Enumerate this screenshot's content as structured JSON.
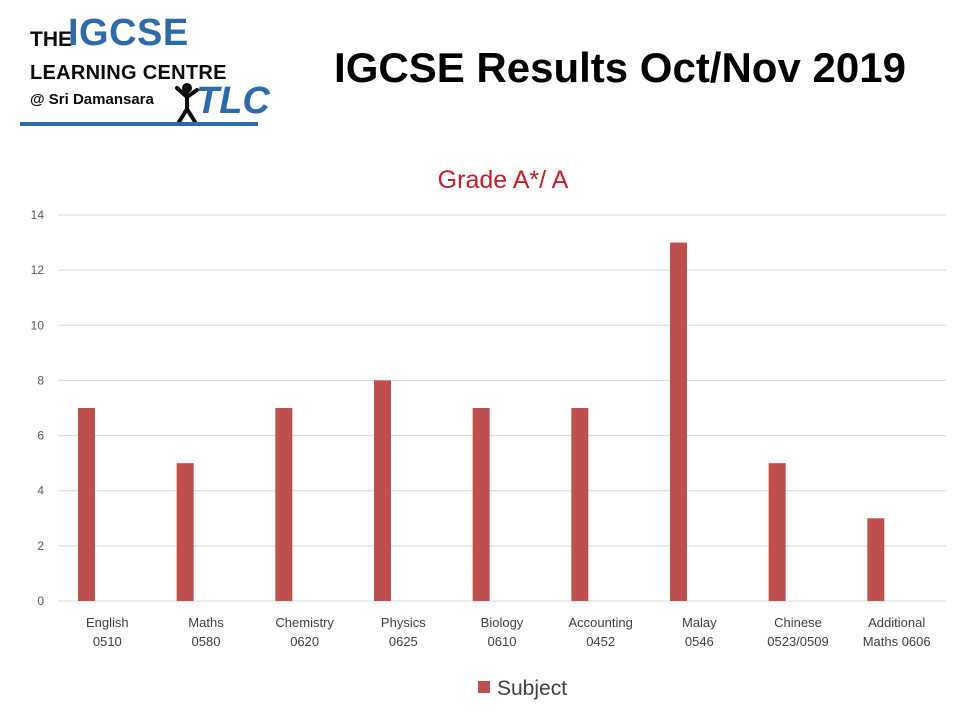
{
  "logo": {
    "the": "THE",
    "igcse": "IGCSE",
    "learning_centre": "LEARNING CENTRE",
    "location": "@ Sri Damansara",
    "tlc": "TLC"
  },
  "page_title": "IGCSE Results Oct/Nov 2019",
  "colors": {
    "bar": "#c0504d",
    "title": "#c0202a",
    "brand_blue": "#2f6aa8",
    "grid": "#d9d9d9"
  },
  "chart_data": {
    "type": "bar",
    "title": "Grade A*/ A",
    "categories": [
      [
        "English",
        "0510"
      ],
      [
        "Maths",
        "0580"
      ],
      [
        "Chemistry",
        "0620"
      ],
      [
        "Physics",
        "0625"
      ],
      [
        "Biology",
        "0610"
      ],
      [
        "Accounting",
        "0452"
      ],
      [
        "Malay",
        "0546"
      ],
      [
        "Chinese",
        "0523/0509"
      ],
      [
        "Additional",
        "Maths 0606"
      ]
    ],
    "series": [
      {
        "name": "Subject",
        "values": [
          7,
          5,
          7,
          8,
          7,
          7,
          13,
          5,
          3
        ]
      }
    ],
    "ylim": [
      0,
      14
    ],
    "yticks": [
      0,
      2,
      4,
      6,
      8,
      10,
      12,
      14
    ],
    "grid": true,
    "legend": "bottom"
  }
}
